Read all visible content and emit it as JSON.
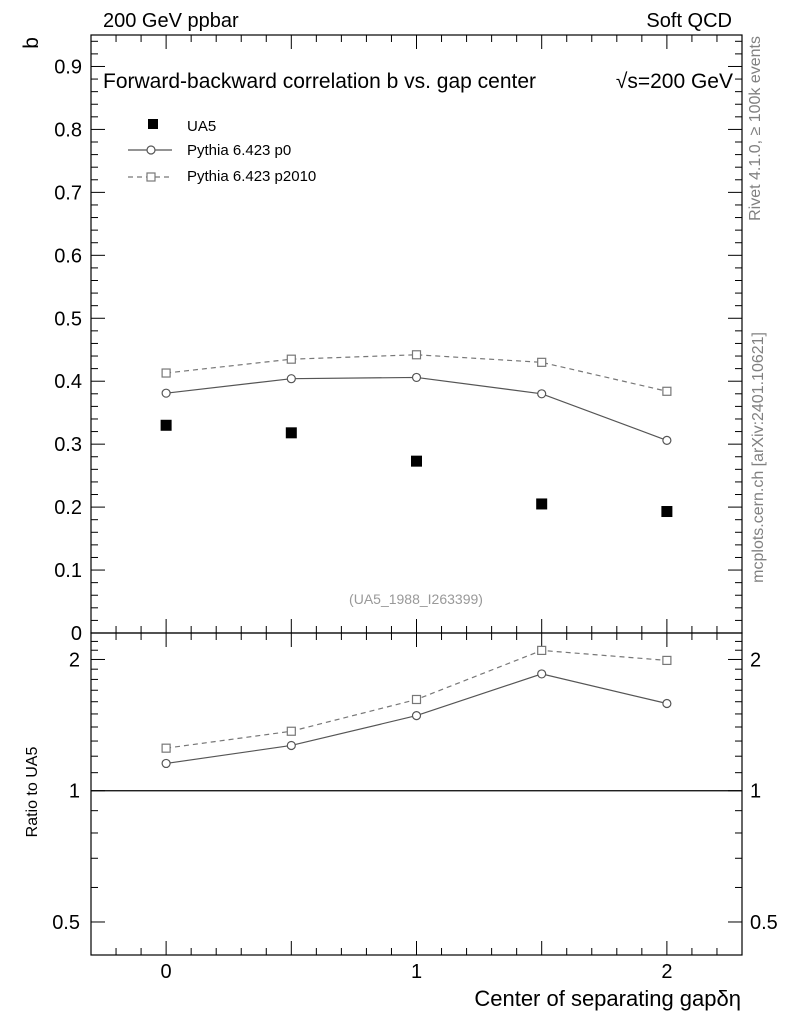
{
  "header": {
    "left": "200 GeV ppbar",
    "right": "Soft QCD"
  },
  "side_labels": {
    "rivet": "Rivet 4.1.0, ≥ 100k events",
    "mcplots": "mcplots.cern.ch [arXiv:2401.10621]"
  },
  "chart_data": [
    {
      "type": "scatter",
      "panel": "main",
      "title": "Forward-backward correlation b  vs. gap center",
      "title_energy": "√s=200 GeV",
      "ylabel": "b",
      "xlabel": "",
      "ylim": [
        0,
        0.95
      ],
      "xlim": [
        -0.3,
        2.3
      ],
      "yticks": [
        0,
        0.1,
        0.2,
        0.3,
        0.4,
        0.5,
        0.6,
        0.7,
        0.8,
        0.9
      ],
      "ytick_labels": [
        "0",
        "0.1",
        "0.2",
        "0.3",
        "0.4",
        "0.5",
        "0.6",
        "0.7",
        "0.8",
        "0.9"
      ],
      "x": [
        0,
        0.5,
        1,
        1.5,
        2
      ],
      "series": [
        {
          "name": "UA5",
          "marker": "filled-square",
          "line": "none",
          "color": "#000000",
          "values": [
            0.33,
            0.318,
            0.273,
            0.205,
            0.193
          ]
        },
        {
          "name": "Pythia 6.423 p0",
          "marker": "open-circle",
          "line": "solid",
          "color": "#555555",
          "values": [
            0.381,
            0.404,
            0.406,
            0.38,
            0.306
          ]
        },
        {
          "name": "Pythia 6.423 p2010",
          "marker": "open-square",
          "line": "dashed",
          "color": "#777777",
          "values": [
            0.413,
            0.435,
            0.442,
            0.43,
            0.384
          ]
        }
      ],
      "legend_position": "top-left",
      "annotation": "(UA5_1988_I263399)"
    },
    {
      "type": "line",
      "panel": "ratio",
      "ylabel": "Ratio to UA5",
      "xlabel": "Center of separating gap",
      "xlabel_symbol": "δη",
      "yscale": "log",
      "ylim": [
        0.42,
        2.3
      ],
      "xlim": [
        -0.3,
        2.3
      ],
      "yticks": [
        0.5,
        1,
        2
      ],
      "ytick_labels": [
        "0.5",
        "1",
        "2"
      ],
      "xticks": [
        0,
        1,
        2
      ],
      "xtick_labels": [
        "0",
        "1",
        "2"
      ],
      "reference_line": 1,
      "x": [
        0,
        0.5,
        1,
        1.5,
        2
      ],
      "series": [
        {
          "name": "Pythia 6.423 p0",
          "marker": "open-circle",
          "line": "solid",
          "color": "#555555",
          "values": [
            1.155,
            1.27,
            1.487,
            1.853,
            1.585
          ]
        },
        {
          "name": "Pythia 6.423 p2010",
          "marker": "open-square",
          "line": "dashed",
          "color": "#777777",
          "values": [
            1.252,
            1.369,
            1.619,
            2.098,
            1.99
          ]
        }
      ]
    }
  ]
}
